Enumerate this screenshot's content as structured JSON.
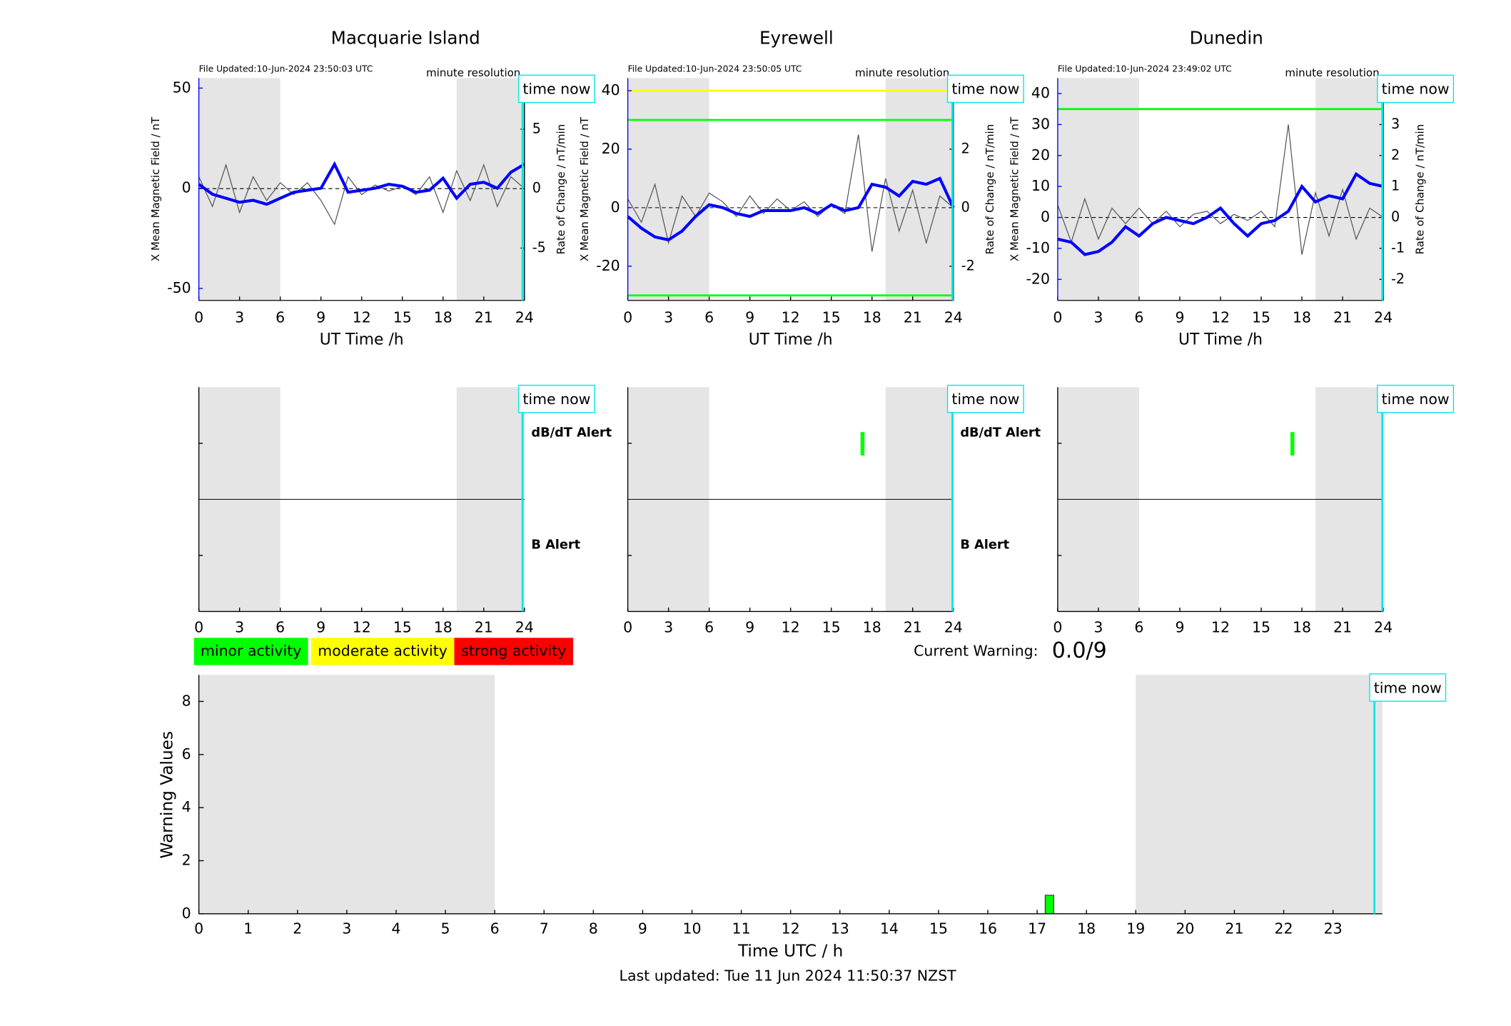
{
  "chart_data": [
    {
      "type": "line",
      "title": "Macquarie Island",
      "file_note": "File Updated:10-Jun-2024 23:50:03 UTC",
      "resolution": "minute resolution",
      "time_now": {
        "value": 23.86,
        "label": "time now"
      },
      "x_label": "UT Time /h",
      "y_label": "X Mean Magnetic Field / nT",
      "y2_label": "Rate of Change / nT/min",
      "xlim": [
        0,
        24
      ],
      "xticks": [
        0,
        3,
        6,
        9,
        12,
        15,
        18,
        21,
        24
      ],
      "ylim": [
        -56,
        55
      ],
      "yticks": [
        -50,
        0,
        50
      ],
      "y2lim": [
        -9.4,
        9.3
      ],
      "y2ticks": [
        -5,
        0,
        5
      ],
      "night": [
        [
          0,
          6
        ],
        [
          19,
          24
        ]
      ],
      "thresholds": [],
      "x": [
        0,
        1,
        2,
        3,
        4,
        5,
        6,
        7,
        8,
        9,
        10,
        11,
        12,
        13,
        14,
        15,
        16,
        17,
        18,
        19,
        20,
        21,
        22,
        23,
        24
      ],
      "series": [
        {
          "color": "#0000ff",
          "values": [
            2,
            -3,
            -5,
            -7,
            -6,
            -8,
            -5,
            -2,
            -1,
            0,
            12,
            -2,
            -1,
            0,
            2,
            1,
            -2,
            -1,
            5,
            -5,
            2,
            3,
            0,
            8,
            12
          ]
        },
        {
          "color": "#555555",
          "axis": "y2",
          "values": [
            1,
            -1.5,
            2,
            -2,
            1,
            -1,
            0.5,
            -0.5,
            0.5,
            -1,
            -3,
            1,
            -0.5,
            0.3,
            -0.2,
            0.2,
            -0.5,
            1,
            -2,
            1.5,
            -1,
            2,
            -1.5,
            1,
            0
          ]
        }
      ]
    },
    {
      "type": "line",
      "title": "Eyrewell",
      "file_note": "File Updated:10-Jun-2024 23:50:05 UTC",
      "resolution": "minute resolution",
      "time_now": {
        "value": 23.93,
        "label": "time now"
      },
      "x_label": "UT Time /h",
      "y_label": "X Mean Magnetic Field / nT",
      "y2_label": "Rate of Change / nT/min",
      "xlim": [
        0,
        24
      ],
      "xticks": [
        0,
        3,
        6,
        9,
        12,
        15,
        18,
        21,
        24
      ],
      "ylim": [
        -31.7,
        44.3
      ],
      "yticks": [
        -20,
        0,
        20,
        40
      ],
      "y2lim": [
        -3.17,
        4.43
      ],
      "y2ticks": [
        -2,
        0,
        2,
        4
      ],
      "night": [
        [
          0,
          6
        ],
        [
          19,
          24
        ]
      ],
      "thresholds": [
        {
          "value": 40,
          "color": "#ffff00"
        },
        {
          "value": 30,
          "color": "#00ff00"
        },
        {
          "value": -30,
          "color": "#00ff00"
        }
      ],
      "x": [
        0,
        1,
        2,
        3,
        4,
        5,
        6,
        7,
        8,
        9,
        10,
        11,
        12,
        13,
        14,
        15,
        16,
        17,
        18,
        19,
        20,
        21,
        22,
        23,
        24
      ],
      "series": [
        {
          "color": "#0000ff",
          "values": [
            -3,
            -7,
            -10,
            -11,
            -8,
            -3,
            1,
            0,
            -2,
            -3,
            -1,
            -1,
            -1,
            0,
            -2,
            1,
            -1,
            0,
            8,
            7,
            4,
            9,
            8,
            10,
            0
          ]
        },
        {
          "color": "#555555",
          "axis": "y2",
          "values": [
            0.3,
            -0.5,
            0.8,
            -1.2,
            0.4,
            -0.3,
            0.5,
            0.2,
            -0.3,
            0.4,
            -0.2,
            0.3,
            -0.1,
            0.2,
            -0.3,
            0.1,
            -0.2,
            2.5,
            -1.5,
            1,
            -0.8,
            0.6,
            -1.2,
            0.4,
            0
          ]
        }
      ]
    },
    {
      "type": "line",
      "title": "Dunedin",
      "file_note": "File Updated:10-Jun-2024 23:49:02 UTC",
      "resolution": "minute resolution",
      "time_now": {
        "value": 23.93,
        "label": "time now"
      },
      "x_label": "UT Time /h",
      "y_label": "X Mean Magnetic Field / nT",
      "y2_label": "Rate of Change / nT/min",
      "xlim": [
        0,
        24
      ],
      "xticks": [
        0,
        3,
        6,
        9,
        12,
        15,
        18,
        21,
        24
      ],
      "ylim": [
        -26.8,
        45
      ],
      "yticks": [
        -20,
        -10,
        0,
        10,
        20,
        30,
        40
      ],
      "y2lim": [
        -2.68,
        4.5
      ],
      "y2ticks": [
        -2,
        -1,
        0,
        1,
        2,
        3,
        4
      ],
      "night": [
        [
          0,
          6
        ],
        [
          19,
          24
        ]
      ],
      "thresholds": [
        {
          "value": 35,
          "color": "#00ff00"
        }
      ],
      "x": [
        0,
        1,
        2,
        3,
        4,
        5,
        6,
        7,
        8,
        9,
        10,
        11,
        12,
        13,
        14,
        15,
        16,
        17,
        18,
        19,
        20,
        21,
        22,
        23,
        24
      ],
      "series": [
        {
          "color": "#0000ff",
          "values": [
            -7,
            -8,
            -12,
            -11,
            -8,
            -3,
            -6,
            -2,
            0,
            -1,
            -2,
            0,
            3,
            -2,
            -6,
            -2,
            -1,
            2,
            10,
            5,
            7,
            6,
            14,
            11,
            10
          ]
        },
        {
          "color": "#555555",
          "axis": "y2",
          "values": [
            0.4,
            -0.8,
            0.6,
            -0.7,
            0.3,
            -0.2,
            0.3,
            -0.2,
            0.2,
            -0.3,
            0.1,
            0.2,
            -0.2,
            0.1,
            -0.1,
            0.2,
            -0.3,
            3,
            -1.2,
            0.8,
            -0.6,
            0.9,
            -0.7,
            0.3,
            0
          ]
        }
      ]
    },
    {
      "type": "alert",
      "time_now": {
        "value": 23.86,
        "label": "time now"
      },
      "xlim": [
        0,
        24
      ],
      "xticks": [
        0,
        3,
        6,
        9,
        12,
        15,
        18,
        21,
        24
      ],
      "night": [
        [
          0,
          6
        ],
        [
          19,
          24
        ]
      ],
      "db_label": "dB/dT Alert",
      "b_label": "B Alert",
      "db_alerts": []
    },
    {
      "type": "alert",
      "time_now": {
        "value": 23.93,
        "label": "time now"
      },
      "xlim": [
        0,
        24
      ],
      "xticks": [
        0,
        3,
        6,
        9,
        12,
        15,
        18,
        21,
        24
      ],
      "night": [
        [
          0,
          6
        ],
        [
          19,
          24
        ]
      ],
      "db_label": "dB/dT Alert",
      "b_label": "B Alert",
      "db_alerts": [
        17.3
      ]
    },
    {
      "type": "alert",
      "time_now": {
        "value": 23.93,
        "label": "time now"
      },
      "xlim": [
        0,
        24
      ],
      "xticks": [
        0,
        3,
        6,
        9,
        12,
        15,
        18,
        21,
        24
      ],
      "night": [
        [
          0,
          6
        ],
        [
          19,
          24
        ]
      ],
      "db_alerts": [
        17.3
      ]
    },
    {
      "type": "bar",
      "x_label": "Time UTC / h",
      "y_label": "Warning Values",
      "xlim": [
        0,
        24
      ],
      "xticks": [
        0,
        1,
        2,
        3,
        4,
        5,
        6,
        7,
        8,
        9,
        10,
        11,
        12,
        13,
        14,
        15,
        16,
        17,
        18,
        19,
        20,
        21,
        22,
        23
      ],
      "ylim": [
        0,
        9
      ],
      "yticks": [
        0,
        2,
        4,
        6,
        8
      ],
      "night": [
        [
          0,
          6
        ],
        [
          19,
          24
        ]
      ],
      "time_now": {
        "value": 23.84,
        "label": "time now"
      },
      "x": [
        17.25
      ],
      "values": [
        0.7
      ],
      "color": "#00ff00",
      "legend": [
        {
          "label": "minor activity",
          "color": "#00ff00"
        },
        {
          "label": "moderate activity",
          "color": "#ffff00"
        },
        {
          "label": "strong activity",
          "color": "#ff0000"
        }
      ],
      "current_warning": {
        "label": "Current Warning:",
        "value": "0.0/9"
      },
      "footer": "Last updated: Tue 11 Jun 2024 11:50:37 NZST"
    }
  ]
}
